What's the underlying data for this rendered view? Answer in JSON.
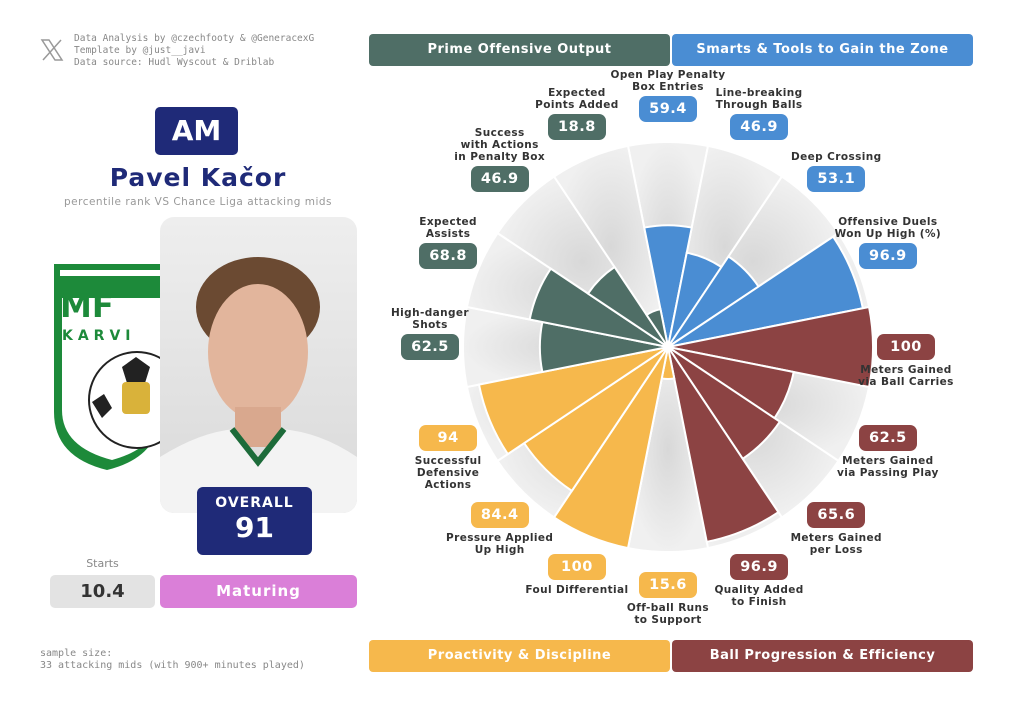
{
  "credits": [
    "Data Analysis by @czechfooty & @GeneracexG",
    "Template by @just__javi",
    "Data source: Hudl Wyscout & Driblab"
  ],
  "player": {
    "position": "AM",
    "name": "Pavel Kačor",
    "subtitle": "percentile rank VS Chance Liga attacking mids",
    "overall_label": "OVERALL",
    "overall": 91,
    "starts_label": "Starts",
    "starts": 10.4,
    "status": "Maturing"
  },
  "club_logo": [
    "MF",
    "KARVI"
  ],
  "sample_size": [
    "sample size:",
    "33 attacking mids (with 900+ minutes played)"
  ],
  "chart_data": {
    "type": "pizza",
    "rlim": [
      0,
      100
    ],
    "groups": [
      {
        "name": "Prime Offensive Output",
        "color": "#4f6e66"
      },
      {
        "name": "Smarts & Tools to Gain the Zone",
        "color": "#4a8dd3"
      },
      {
        "name": "Proactivity & Discipline",
        "color": "#f6b84c"
      },
      {
        "name": "Ball Progression & Efficiency",
        "color": "#8c4343"
      }
    ],
    "categories": [
      "Open Play Penalty\nBox Entries",
      "Line-breaking\nThrough Balls",
      "Deep Crossing",
      "Offensive Duels\nWon Up High (%)",
      "Meters Gained\nvia Ball Carries",
      "Meters Gained\nvia Passing Play",
      "Meters Gained\nper Loss",
      "Quality Added\nto Finish",
      "Off-ball Runs\nto Support",
      "Foul Differential",
      "Pressure Applied\nUp High",
      "Successful\nDefensive\nActions",
      "High-danger\nShots",
      "Expected\nAssists",
      "Success\nwith Actions\nin Penalty Box",
      "Expected\nPoints Added"
    ],
    "values": [
      59.4,
      46.9,
      53.1,
      96.9,
      100,
      62.5,
      65.6,
      96.9,
      15.6,
      100,
      84.4,
      94,
      62.5,
      68.8,
      46.9,
      18.8
    ],
    "colors": [
      "#4a8dd3",
      "#4a8dd3",
      "#4a8dd3",
      "#4a8dd3",
      "#8c4343",
      "#8c4343",
      "#8c4343",
      "#8c4343",
      "#f6b84c",
      "#f6b84c",
      "#f6b84c",
      "#f6b84c",
      "#4f6e66",
      "#4f6e66",
      "#4f6e66",
      "#4f6e66"
    ]
  }
}
